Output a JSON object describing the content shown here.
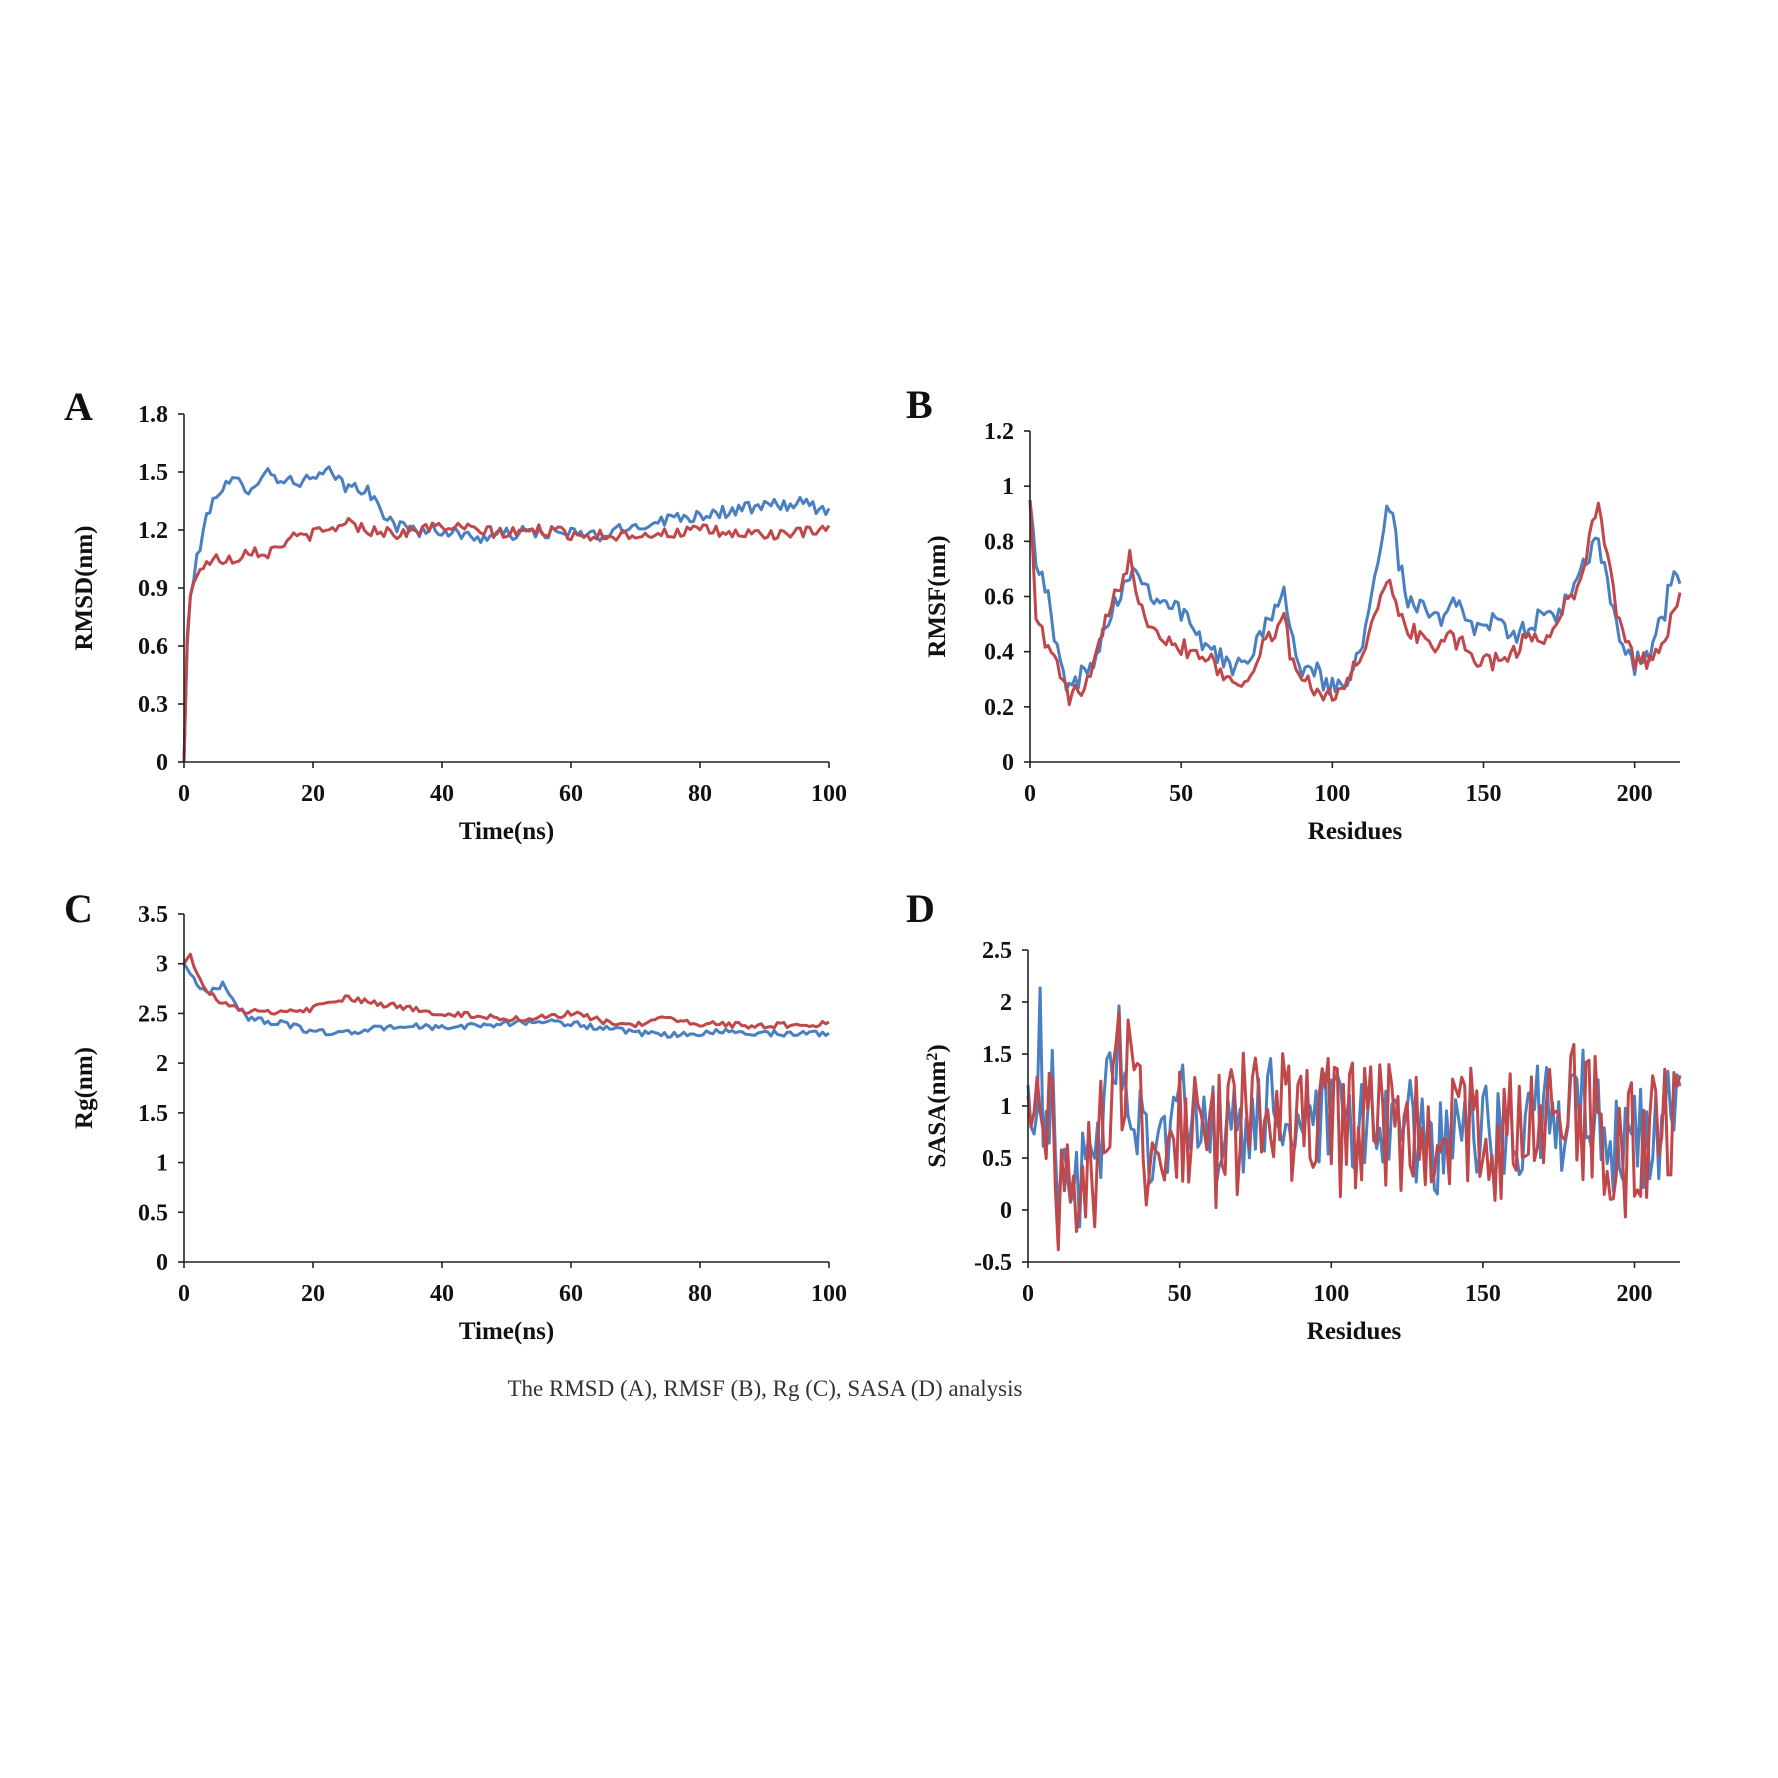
{
  "caption": "The RMSD (A), RMSF (B), Rg (C), SASA (D) analysis",
  "colors": {
    "series1": "#4a7fc1",
    "series2": "#c0484a",
    "axis": "#222222"
  },
  "chart_data": [
    {
      "id": "A",
      "label": "A",
      "type": "line",
      "xlabel": "Time(ns)",
      "ylabel": "RMSD(nm)",
      "ylabel_sup": "",
      "xlim": [
        0,
        100
      ],
      "ylim": [
        0,
        1.8
      ],
      "xticks": [
        0,
        20,
        40,
        60,
        80,
        100
      ],
      "yticks": [
        0,
        0.3,
        0.6,
        0.9,
        1.2,
        1.5,
        1.8
      ],
      "xtick_labels": [
        "0",
        "20",
        "40",
        "60",
        "80",
        "100"
      ],
      "ytick_labels": [
        "0",
        "0.3",
        "0.6",
        "0.9",
        "1.2",
        "1.5",
        "1.8"
      ],
      "grid": false,
      "noise_step": 0.5,
      "series": [
        {
          "name": "series-blue",
          "color": "#4a7fc1",
          "noise": 0.035,
          "x": [
            0,
            0.5,
            1,
            2,
            3,
            5,
            8,
            10,
            13,
            16,
            20,
            23,
            25,
            28,
            30,
            33,
            36,
            40,
            45,
            50,
            55,
            60,
            65,
            70,
            75,
            80,
            85,
            90,
            95,
            100
          ],
          "y": [
            0,
            0.6,
            0.85,
            1.05,
            1.2,
            1.4,
            1.45,
            1.42,
            1.5,
            1.45,
            1.46,
            1.5,
            1.42,
            1.42,
            1.32,
            1.22,
            1.2,
            1.2,
            1.16,
            1.18,
            1.19,
            1.18,
            1.17,
            1.22,
            1.26,
            1.28,
            1.3,
            1.32,
            1.34,
            1.3
          ]
        },
        {
          "name": "series-red",
          "color": "#c0484a",
          "noise": 0.03,
          "x": [
            0,
            0.5,
            1,
            2,
            3,
            5,
            8,
            10,
            13,
            16,
            20,
            23,
            25,
            28,
            30,
            33,
            36,
            40,
            45,
            50,
            55,
            60,
            65,
            70,
            75,
            80,
            85,
            90,
            95,
            100
          ],
          "y": [
            0,
            0.65,
            0.85,
            0.98,
            1.02,
            1.05,
            1.05,
            1.1,
            1.08,
            1.15,
            1.18,
            1.2,
            1.25,
            1.2,
            1.2,
            1.18,
            1.2,
            1.22,
            1.2,
            1.18,
            1.2,
            1.18,
            1.17,
            1.18,
            1.18,
            1.2,
            1.18,
            1.18,
            1.18,
            1.2
          ]
        }
      ]
    },
    {
      "id": "B",
      "label": "B",
      "type": "line",
      "xlabel": "Residues",
      "ylabel": "RMSF(nm)",
      "ylabel_sup": "",
      "xlim": [
        0,
        215
      ],
      "ylim": [
        0,
        1.2
      ],
      "xticks": [
        0,
        50,
        100,
        150,
        200
      ],
      "yticks": [
        0,
        0.2,
        0.4,
        0.6,
        0.8,
        1,
        1.2
      ],
      "xtick_labels": [
        "0",
        "50",
        "100",
        "150",
        "200"
      ],
      "ytick_labels": [
        "0",
        "0.2",
        "0.4",
        "0.6",
        "0.8",
        "1",
        "1.2"
      ],
      "grid": false,
      "noise_step": 1,
      "series": [
        {
          "name": "series-blue",
          "color": "#4a7fc1",
          "noise": 0.04,
          "x": [
            0,
            2,
            5,
            8,
            10,
            13,
            16,
            20,
            25,
            30,
            33,
            36,
            40,
            45,
            50,
            55,
            60,
            65,
            70,
            75,
            80,
            84,
            86,
            90,
            95,
            100,
            105,
            110,
            113,
            116,
            118,
            120,
            122,
            125,
            130,
            135,
            140,
            145,
            150,
            155,
            160,
            165,
            170,
            175,
            180,
            185,
            188,
            190,
            195,
            200,
            205,
            210,
            213,
            215
          ],
          "y": [
            0.95,
            0.75,
            0.65,
            0.45,
            0.35,
            0.27,
            0.3,
            0.35,
            0.5,
            0.62,
            0.7,
            0.68,
            0.62,
            0.58,
            0.55,
            0.45,
            0.42,
            0.35,
            0.34,
            0.45,
            0.55,
            0.62,
            0.45,
            0.35,
            0.32,
            0.27,
            0.3,
            0.45,
            0.62,
            0.8,
            0.95,
            0.9,
            0.72,
            0.58,
            0.55,
            0.5,
            0.62,
            0.5,
            0.5,
            0.5,
            0.45,
            0.5,
            0.52,
            0.55,
            0.62,
            0.75,
            0.8,
            0.7,
            0.45,
            0.35,
            0.4,
            0.55,
            0.72,
            0.65
          ]
        },
        {
          "name": "series-red",
          "color": "#c0484a",
          "noise": 0.035,
          "x": [
            0,
            2,
            5,
            8,
            10,
            13,
            16,
            20,
            25,
            30,
            33,
            36,
            40,
            45,
            50,
            55,
            60,
            65,
            70,
            75,
            80,
            84,
            86,
            90,
            95,
            100,
            105,
            110,
            113,
            116,
            118,
            120,
            122,
            125,
            130,
            135,
            140,
            145,
            150,
            155,
            160,
            165,
            170,
            175,
            180,
            185,
            188,
            190,
            195,
            200,
            205,
            210,
            213,
            215
          ],
          "y": [
            0.95,
            0.55,
            0.42,
            0.4,
            0.3,
            0.24,
            0.25,
            0.3,
            0.5,
            0.65,
            0.75,
            0.6,
            0.5,
            0.45,
            0.42,
            0.4,
            0.38,
            0.3,
            0.28,
            0.38,
            0.45,
            0.55,
            0.38,
            0.3,
            0.27,
            0.24,
            0.28,
            0.4,
            0.52,
            0.6,
            0.65,
            0.6,
            0.55,
            0.48,
            0.45,
            0.42,
            0.45,
            0.4,
            0.35,
            0.38,
            0.4,
            0.45,
            0.45,
            0.52,
            0.62,
            0.8,
            0.95,
            0.8,
            0.5,
            0.35,
            0.38,
            0.45,
            0.55,
            0.62
          ]
        }
      ]
    },
    {
      "id": "C",
      "label": "C",
      "type": "line",
      "xlabel": "Time(ns)",
      "ylabel": "Rg(nm)",
      "ylabel_sup": "",
      "xlim": [
        0,
        100
      ],
      "ylim": [
        0,
        3.5
      ],
      "xticks": [
        0,
        20,
        40,
        60,
        80,
        100
      ],
      "yticks": [
        0,
        0.5,
        1,
        1.5,
        2,
        2.5,
        3,
        3.5
      ],
      "xtick_labels": [
        "0",
        "20",
        "40",
        "60",
        "80",
        "100"
      ],
      "ytick_labels": [
        "0",
        "0.5",
        "1",
        "1.5",
        "2",
        "2.5",
        "3",
        "3.5"
      ],
      "grid": false,
      "noise_step": 0.5,
      "series": [
        {
          "name": "series-blue",
          "color": "#4a7fc1",
          "noise": 0.03,
          "x": [
            0,
            2,
            4,
            6,
            8,
            10,
            15,
            20,
            25,
            30,
            35,
            40,
            45,
            50,
            55,
            60,
            65,
            70,
            75,
            80,
            85,
            90,
            95,
            100
          ],
          "y": [
            3.0,
            2.8,
            2.7,
            2.8,
            2.6,
            2.45,
            2.4,
            2.32,
            2.3,
            2.35,
            2.38,
            2.35,
            2.38,
            2.4,
            2.42,
            2.4,
            2.35,
            2.3,
            2.28,
            2.3,
            2.32,
            2.3,
            2.3,
            2.3
          ]
        },
        {
          "name": "series-red",
          "color": "#c0484a",
          "noise": 0.03,
          "x": [
            0,
            1,
            2,
            4,
            6,
            8,
            10,
            15,
            20,
            25,
            30,
            35,
            40,
            45,
            50,
            55,
            60,
            65,
            70,
            75,
            80,
            85,
            90,
            95,
            100
          ],
          "y": [
            3.0,
            3.1,
            2.9,
            2.7,
            2.6,
            2.55,
            2.52,
            2.5,
            2.55,
            2.65,
            2.6,
            2.55,
            2.5,
            2.48,
            2.45,
            2.45,
            2.5,
            2.42,
            2.38,
            2.45,
            2.4,
            2.38,
            2.38,
            2.38,
            2.4
          ]
        }
      ]
    },
    {
      "id": "D",
      "label": "D",
      "type": "line",
      "xlabel": "Residues",
      "ylabel": "SASA(nm",
      "ylabel_sup": "2",
      "ylabel_suffix": ")",
      "xlim": [
        0,
        215
      ],
      "ylim": [
        -0.5,
        2.5
      ],
      "xticks": [
        0,
        50,
        100,
        150,
        200
      ],
      "yticks": [
        -0.5,
        0,
        0.5,
        1,
        1.5,
        2,
        2.5
      ],
      "xtick_labels": [
        "0",
        "50",
        "100",
        "150",
        "200"
      ],
      "ytick_labels": [
        "-0.5",
        "0",
        "0.5",
        "1",
        "1.5",
        "2",
        "2.5"
      ],
      "grid": false,
      "noise_step": 1,
      "series": [
        {
          "name": "series-blue",
          "color": "#4a7fc1",
          "noise": 0.55,
          "x": [
            0,
            2,
            4,
            6,
            8,
            10,
            12,
            15,
            18,
            20,
            25,
            30,
            35,
            40,
            45,
            50,
            55,
            60,
            65,
            70,
            75,
            80,
            85,
            90,
            95,
            100,
            105,
            110,
            115,
            120,
            125,
            130,
            135,
            140,
            145,
            150,
            155,
            160,
            165,
            170,
            175,
            180,
            185,
            190,
            195,
            200,
            205,
            210,
            215
          ],
          "y": [
            1.2,
            0.4,
            1.6,
            0.5,
            1.6,
            0.3,
            0.6,
            0.3,
            0.2,
            0.4,
            0.8,
            1.6,
            0.9,
            0.8,
            0.7,
            0.9,
            0.8,
            0.7,
            0.6,
            0.7,
            0.9,
            1.0,
            0.8,
            0.9,
            0.7,
            0.8,
            0.7,
            0.8,
            0.9,
            0.8,
            0.7,
            0.8,
            0.7,
            0.7,
            0.8,
            0.7,
            0.6,
            0.7,
            0.9,
            1.0,
            0.8,
            1.0,
            1.0,
            0.8,
            0.6,
            0.6,
            0.7,
            0.9,
            1.0
          ]
        },
        {
          "name": "series-red",
          "color": "#c0484a",
          "noise": 0.7,
          "x": [
            0,
            2,
            4,
            6,
            8,
            10,
            12,
            15,
            18,
            20,
            25,
            30,
            35,
            40,
            45,
            50,
            55,
            60,
            65,
            70,
            75,
            80,
            85,
            90,
            95,
            100,
            105,
            110,
            115,
            120,
            125,
            130,
            135,
            140,
            145,
            150,
            155,
            160,
            165,
            170,
            175,
            180,
            185,
            190,
            195,
            200,
            205,
            210,
            215
          ],
          "y": [
            1.1,
            0.5,
            1.2,
            0.4,
            1.4,
            0.3,
            0.5,
            0.2,
            0.2,
            0.4,
            0.7,
            1.5,
            0.9,
            0.7,
            0.6,
            0.9,
            0.8,
            0.7,
            0.6,
            0.8,
            1.0,
            1.1,
            0.8,
            0.8,
            0.7,
            0.8,
            0.7,
            0.8,
            1.0,
            0.8,
            0.7,
            0.8,
            0.7,
            0.8,
            0.8,
            0.7,
            0.7,
            0.7,
            1.0,
            1.0,
            0.8,
            0.9,
            0.9,
            0.8,
            0.6,
            0.6,
            0.7,
            0.9,
            1.1
          ]
        }
      ]
    }
  ]
}
